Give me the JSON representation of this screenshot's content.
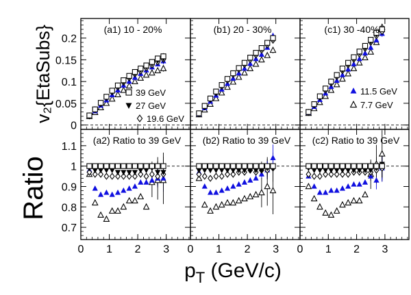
{
  "labels": {
    "top_ylabel": "v₂{EtaSubs}",
    "bottom_ylabel": "Ratio",
    "xlabel": "p_T (GeV/c)"
  },
  "chart_data": {
    "type": "scatter",
    "x_range": [
      0,
      3.85
    ],
    "top_ylim": [
      -0.01,
      0.245
    ],
    "bottom_ylim": [
      0.64,
      1.18
    ],
    "x_ticks": [
      0,
      1,
      2,
      3
    ],
    "x_ticklabels": [
      "0",
      "1",
      "2",
      "3"
    ],
    "top_yticks": [
      0,
      0.05,
      0.1,
      0.15,
      0.2
    ],
    "top_yticklabels": [
      "0",
      "0.05",
      "0.1",
      "0.15",
      "0.2"
    ],
    "bottom_yticks": [
      0.7,
      0.8,
      0.9,
      1.0,
      1.1
    ],
    "bottom_yticklabels": [
      "0.7",
      "0.8",
      "0.9",
      "1",
      "1.1"
    ],
    "x": [
      0.3,
      0.5,
      0.7,
      0.9,
      1.1,
      1.3,
      1.5,
      1.7,
      1.9,
      2.1,
      2.3,
      2.5,
      2.7,
      2.9
    ],
    "series_legend": [
      {
        "name": "39 GeV",
        "marker": "open-square",
        "color": "#000000"
      },
      {
        "name": "27 GeV",
        "marker": "filled-down-triangle",
        "color": "#000000"
      },
      {
        "name": "19.6 GeV",
        "marker": "open-diamond",
        "color": "#000000"
      },
      {
        "name": "11.5 GeV",
        "marker": "filled-up-triangle",
        "color": "#1010e0"
      },
      {
        "name": "7.7 GeV",
        "marker": "open-up-triangle",
        "color": "#000000"
      }
    ],
    "panels": [
      {
        "title": "(a1) 10 - 20%",
        "ratio_title": "(a2) Ratio to 39 GeV",
        "v2": {
          "39 GeV": [
            0.022,
            0.036,
            0.051,
            0.065,
            0.079,
            0.091,
            0.103,
            0.113,
            0.122,
            0.13,
            0.137,
            0.145,
            0.153,
            0.158
          ],
          "27 GeV": [
            0.022,
            0.036,
            0.05,
            0.064,
            0.077,
            0.089,
            0.1,
            0.11,
            0.119,
            0.127,
            0.134,
            0.141,
            0.148,
            0.153
          ],
          "19.6 GeV": [
            0.021,
            0.035,
            0.049,
            0.063,
            0.076,
            0.087,
            0.098,
            0.108,
            0.117,
            0.124,
            0.131,
            0.138,
            0.145,
            0.151
          ],
          "11.5 GeV": [
            0.021,
            0.032,
            0.045,
            0.057,
            0.069,
            0.08,
            0.091,
            0.1,
            0.109,
            0.118,
            0.126,
            0.133,
            0.14,
            0.147
          ],
          "7.7 GeV": [
            0.02,
            0.029,
            0.04,
            0.05,
            0.06,
            0.07,
            0.08,
            0.09,
            0.1,
            0.108,
            0.115,
            0.12,
            0.125,
            0.13
          ]
        },
        "ratio": {
          "39 GeV": [
            1.0,
            1.0,
            1.0,
            1.0,
            1.0,
            1.0,
            1.0,
            1.0,
            1.0,
            1.0,
            1.0,
            1.0,
            1.0,
            1.0
          ],
          "27 GeV": [
            0.99,
            0.98,
            0.98,
            0.98,
            0.98,
            0.97,
            0.97,
            0.97,
            0.97,
            0.98,
            0.98,
            0.99,
            0.97,
            0.97
          ],
          "19.6 GeV": [
            0.97,
            0.96,
            0.96,
            0.95,
            0.95,
            0.95,
            0.95,
            0.95,
            0.95,
            0.96,
            0.95,
            0.96,
            0.95,
            0.96
          ],
          "11.5 GeV": [
            0.98,
            0.89,
            0.86,
            0.87,
            0.86,
            0.87,
            0.88,
            0.89,
            0.9,
            0.92,
            0.92,
            0.93,
            0.94,
            0.94
          ],
          "7.7 GeV": [
            0.96,
            0.82,
            0.76,
            0.74,
            0.78,
            0.78,
            0.8,
            0.83,
            0.83,
            0.85,
            0.8,
            0.92,
            0.93,
            0.93
          ]
        }
      },
      {
        "title": "(b1) 20 - 30%",
        "ratio_title": "(b2) Ratio to 39 GeV",
        "v2": {
          "39 GeV": [
            0.027,
            0.044,
            0.061,
            0.077,
            0.092,
            0.106,
            0.119,
            0.131,
            0.143,
            0.155,
            0.166,
            0.177,
            0.189,
            0.2
          ],
          "27 GeV": [
            0.026,
            0.043,
            0.06,
            0.076,
            0.091,
            0.105,
            0.118,
            0.13,
            0.141,
            0.153,
            0.164,
            0.175,
            0.187,
            0.198
          ],
          "19.6 GeV": [
            0.026,
            0.042,
            0.059,
            0.074,
            0.089,
            0.103,
            0.116,
            0.128,
            0.139,
            0.15,
            0.161,
            0.172,
            0.184,
            0.195
          ],
          "11.5 GeV": [
            0.025,
            0.039,
            0.054,
            0.068,
            0.082,
            0.095,
            0.107,
            0.119,
            0.13,
            0.141,
            0.152,
            0.162,
            0.178,
            0.205
          ],
          "7.7 GeV": [
            0.024,
            0.035,
            0.048,
            0.061,
            0.074,
            0.087,
            0.099,
            0.11,
            0.12,
            0.13,
            0.14,
            0.15,
            0.16,
            0.172
          ]
        },
        "ratio": {
          "39 GeV": [
            1.0,
            1.0,
            1.0,
            1.0,
            1.0,
            1.0,
            1.0,
            1.0,
            1.0,
            1.0,
            1.0,
            1.0,
            1.0,
            1.0
          ],
          "27 GeV": [
            0.98,
            0.98,
            0.98,
            0.98,
            0.98,
            0.98,
            0.98,
            0.98,
            0.98,
            0.98,
            0.98,
            0.98,
            0.99,
            0.99
          ],
          "19.6 GeV": [
            0.96,
            0.95,
            0.94,
            0.95,
            0.95,
            0.96,
            0.96,
            0.97,
            0.97,
            0.98,
            0.97,
            0.98,
            0.98,
            0.99
          ],
          "11.5 GeV": [
            0.97,
            0.9,
            0.87,
            0.87,
            0.88,
            0.89,
            0.9,
            0.91,
            0.92,
            0.93,
            0.94,
            0.96,
            0.98,
            1.04
          ],
          "7.7 GeV": [
            0.94,
            0.81,
            0.78,
            0.8,
            0.81,
            0.82,
            0.82,
            0.83,
            0.84,
            0.85,
            0.86,
            0.87,
            0.9,
            0.88
          ]
        }
      },
      {
        "title": "(c1) 30 -40%",
        "ratio_title": "(c2) Ratio to 39 GeV",
        "v2": {
          "39 GeV": [
            0.03,
            0.048,
            0.066,
            0.084,
            0.1,
            0.115,
            0.13,
            0.143,
            0.156,
            0.169,
            0.182,
            0.196,
            0.212,
            0.22
          ],
          "27 GeV": [
            0.03,
            0.047,
            0.065,
            0.082,
            0.098,
            0.113,
            0.127,
            0.14,
            0.153,
            0.166,
            0.178,
            0.192,
            0.208,
            0.222
          ],
          "19.6 GeV": [
            0.029,
            0.046,
            0.064,
            0.08,
            0.096,
            0.111,
            0.125,
            0.138,
            0.151,
            0.163,
            0.176,
            0.19,
            0.205,
            0.215
          ],
          "11.5 GeV": [
            0.028,
            0.042,
            0.058,
            0.073,
            0.088,
            0.102,
            0.115,
            0.128,
            0.14,
            0.152,
            0.165,
            0.178,
            0.195,
            0.21
          ],
          "7.7 GeV": [
            0.027,
            0.038,
            0.052,
            0.066,
            0.08,
            0.093,
            0.106,
            0.118,
            0.13,
            0.143,
            0.155,
            0.168,
            0.19,
            0.225
          ]
        },
        "ratio": {
          "39 GeV": [
            1.0,
            1.0,
            1.0,
            1.0,
            1.0,
            1.0,
            1.0,
            1.0,
            1.0,
            1.0,
            1.0,
            1.0,
            1.0,
            1.0
          ],
          "27 GeV": [
            0.99,
            0.98,
            0.98,
            0.98,
            0.98,
            0.98,
            0.98,
            0.98,
            0.98,
            0.98,
            0.98,
            0.98,
            0.99,
            1.01
          ],
          "19.6 GeV": [
            0.96,
            0.95,
            0.95,
            0.96,
            0.96,
            0.96,
            0.96,
            0.96,
            0.97,
            0.97,
            0.97,
            0.97,
            0.98,
            0.99
          ],
          "11.5 GeV": [
            0.95,
            0.9,
            0.87,
            0.87,
            0.88,
            0.88,
            0.89,
            0.9,
            0.91,
            0.91,
            0.92,
            0.95,
            0.93,
            0.99
          ],
          "7.7 GeV": [
            0.9,
            0.84,
            0.8,
            0.77,
            0.76,
            0.78,
            0.81,
            0.82,
            0.83,
            0.83,
            0.86,
            0.96,
            1.01,
            1.06
          ]
        }
      }
    ]
  }
}
